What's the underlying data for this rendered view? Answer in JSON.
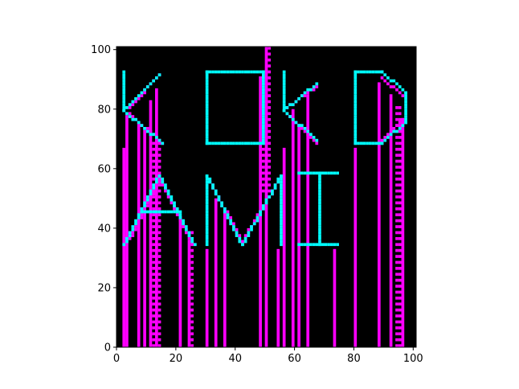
{
  "chart_data": {
    "type": "raster",
    "title": "",
    "xlabel": "",
    "ylabel": "",
    "xlim": [
      0,
      101
    ],
    "ylim": [
      0,
      101
    ],
    "grid": false,
    "legend": "none",
    "colors": {
      "background": "#000000",
      "magenta": "#ff00ff",
      "cyan": "#00ffff"
    },
    "x_ticks": [
      {
        "value": 0,
        "label": "0"
      },
      {
        "value": 20,
        "label": "20"
      },
      {
        "value": 40,
        "label": "40"
      },
      {
        "value": 60,
        "label": "60"
      },
      {
        "value": 80,
        "label": "80"
      },
      {
        "value": 100,
        "label": "100"
      }
    ],
    "y_ticks": [
      {
        "value": 0,
        "label": "0"
      },
      {
        "value": 20,
        "label": "20"
      },
      {
        "value": 40,
        "label": "40"
      },
      {
        "value": 60,
        "label": "60"
      },
      {
        "value": 80,
        "label": "80"
      },
      {
        "value": 100,
        "label": "100"
      }
    ],
    "magenta_columns": [
      [
        2,
        0,
        67
      ],
      [
        3,
        0,
        78
      ],
      [
        7,
        0,
        75
      ],
      [
        9,
        0,
        73
      ],
      [
        11,
        0,
        83
      ],
      [
        13,
        0,
        87
      ],
      [
        21,
        0,
        44
      ],
      [
        24,
        0,
        36
      ],
      [
        30,
        0,
        33
      ],
      [
        33,
        0,
        50
      ],
      [
        36,
        0,
        46
      ],
      [
        48,
        0,
        91
      ],
      [
        50,
        0,
        101
      ],
      [
        54,
        0,
        33
      ],
      [
        56,
        0,
        67
      ],
      [
        59,
        0,
        80
      ],
      [
        61,
        0,
        75
      ],
      [
        64,
        0,
        85
      ],
      [
        73,
        0,
        33
      ],
      [
        80,
        0,
        67
      ],
      [
        88,
        0,
        89
      ],
      [
        92,
        0,
        85
      ],
      [
        96,
        0,
        77
      ]
    ],
    "dotted_columns": [
      [
        12,
        0,
        70
      ],
      [
        14,
        0,
        70
      ],
      [
        25,
        0,
        40
      ],
      [
        49,
        52,
        91
      ],
      [
        51,
        52,
        101
      ],
      [
        94,
        0,
        82
      ],
      [
        95,
        0,
        82
      ]
    ],
    "cyan_polylines": [
      [
        [
          2,
          92
        ],
        [
          2,
          79
        ],
        [
          14,
          91
        ]
      ],
      [
        [
          2,
          79
        ],
        [
          15,
          68
        ]
      ],
      [
        [
          2,
          34
        ],
        [
          14,
          57
        ],
        [
          26,
          34
        ]
      ],
      [
        [
          8,
          45
        ],
        [
          21,
          45
        ]
      ],
      [
        [
          30,
          92
        ],
        [
          49,
          92
        ],
        [
          49,
          68
        ],
        [
          30,
          68
        ],
        [
          30,
          92
        ]
      ],
      [
        [
          30,
          57
        ],
        [
          42,
          34
        ],
        [
          55,
          57
        ]
      ],
      [
        [
          30,
          57
        ],
        [
          30,
          34
        ]
      ],
      [
        [
          55,
          57
        ],
        [
          55,
          34
        ]
      ],
      [
        [
          56,
          92
        ],
        [
          56,
          79
        ],
        [
          67,
          88
        ]
      ],
      [
        [
          56,
          79
        ],
        [
          67,
          69
        ]
      ],
      [
        [
          61,
          58
        ],
        [
          74,
          58
        ]
      ],
      [
        [
          61,
          34
        ],
        [
          74,
          34
        ]
      ],
      [
        [
          68,
          58
        ],
        [
          68,
          34
        ]
      ],
      [
        [
          80,
          92
        ],
        [
          89,
          92
        ],
        [
          97,
          85
        ],
        [
          97,
          75
        ],
        [
          89,
          68
        ],
        [
          80,
          68
        ],
        [
          80,
          92
        ]
      ]
    ],
    "magenta_stepped_segments": [
      [
        [
          4,
          80
        ],
        [
          14,
          91
        ]
      ],
      [
        [
          4,
          78
        ],
        [
          15,
          68
        ]
      ],
      [
        [
          4,
          36
        ],
        [
          14,
          56
        ]
      ],
      [
        [
          14,
          56
        ],
        [
          25,
          35
        ]
      ],
      [
        [
          31,
          55
        ],
        [
          42,
          35
        ]
      ],
      [
        [
          42,
          35
        ],
        [
          54,
          55
        ]
      ],
      [
        [
          57,
          80
        ],
        [
          67,
          87
        ]
      ],
      [
        [
          57,
          78
        ],
        [
          67,
          68
        ]
      ],
      [
        [
          89,
          90
        ],
        [
          96,
          84
        ]
      ],
      [
        [
          89,
          69
        ],
        [
          96,
          76
        ]
      ]
    ]
  }
}
